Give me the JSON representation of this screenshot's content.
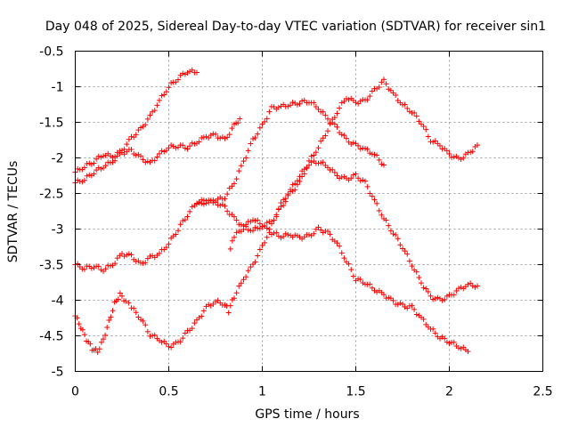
{
  "chart_data": {
    "type": "scatter",
    "title": "Day 048 of 2025, Sidereal Day-to-day VTEC variation (SDTVAR) for receiver sin1",
    "xlabel": "GPS time / hours",
    "ylabel": "SDTVAR / TECUs",
    "xlim": [
      0,
      2.5
    ],
    "ylim": [
      -5,
      -0.5
    ],
    "xticks": [
      "0",
      "0.5",
      "1",
      "1.5",
      "2",
      "2.5"
    ],
    "yticks": [
      "-0.5",
      "-1",
      "-1.5",
      "-2",
      "-2.5",
      "-3",
      "-3.5",
      "-4",
      "-4.5",
      "-5"
    ],
    "grid": true,
    "marker": "+",
    "color": "#ff0000",
    "series": [
      {
        "points": [
          [
            0,
            -2.2
          ],
          [
            0.05,
            -2.12
          ],
          [
            0.1,
            -2.05
          ],
          [
            0.15,
            -1.95
          ],
          [
            0.2,
            -1.98
          ],
          [
            0.25,
            -1.9
          ],
          [
            0.3,
            -1.72
          ],
          [
            0.35,
            -1.6
          ],
          [
            0.4,
            -1.42
          ],
          [
            0.45,
            -1.2
          ],
          [
            0.5,
            -1.0
          ],
          [
            0.55,
            -0.88
          ],
          [
            0.6,
            -0.78
          ],
          [
            0.65,
            -0.8
          ]
        ]
      },
      {
        "points": [
          [
            0,
            -2.35
          ],
          [
            0.05,
            -2.3
          ],
          [
            0.1,
            -2.2
          ],
          [
            0.15,
            -2.12
          ],
          [
            0.2,
            -2.05
          ],
          [
            0.25,
            -1.93
          ],
          [
            0.3,
            -1.9
          ],
          [
            0.35,
            -2.0
          ],
          [
            0.4,
            -2.08
          ],
          [
            0.45,
            -1.95
          ],
          [
            0.5,
            -1.85
          ],
          [
            0.55,
            -1.83
          ],
          [
            0.6,
            -1.85
          ],
          [
            0.65,
            -1.78
          ],
          [
            0.7,
            -1.7
          ],
          [
            0.75,
            -1.68
          ],
          [
            0.8,
            -1.75
          ],
          [
            0.85,
            -1.55
          ],
          [
            0.88,
            -1.45
          ]
        ]
      },
      {
        "points": [
          [
            0,
            -3.5
          ],
          [
            0.05,
            -3.55
          ],
          [
            0.1,
            -3.52
          ],
          [
            0.15,
            -3.57
          ],
          [
            0.2,
            -3.5
          ],
          [
            0.25,
            -3.35
          ],
          [
            0.3,
            -3.38
          ],
          [
            0.35,
            -3.5
          ],
          [
            0.4,
            -3.4
          ],
          [
            0.45,
            -3.35
          ],
          [
            0.5,
            -3.2
          ],
          [
            0.55,
            -3.0
          ],
          [
            0.6,
            -2.8
          ],
          [
            0.65,
            -2.62
          ],
          [
            0.7,
            -2.6
          ],
          [
            0.75,
            -2.62
          ],
          [
            0.8,
            -2.7
          ],
          [
            0.85,
            -2.85
          ],
          [
            0.9,
            -2.97
          ],
          [
            0.95,
            -3.02
          ],
          [
            1.0,
            -2.95
          ],
          [
            1.05,
            -3.05
          ],
          [
            1.1,
            -3.1
          ],
          [
            1.15,
            -3.08
          ],
          [
            1.2,
            -3.12
          ],
          [
            1.25,
            -3.1
          ],
          [
            1.3,
            -3.0
          ],
          [
            1.35,
            -3.05
          ],
          [
            1.4,
            -3.2
          ],
          [
            1.45,
            -3.45
          ],
          [
            1.5,
            -3.7
          ],
          [
            1.55,
            -3.75
          ],
          [
            1.6,
            -3.85
          ],
          [
            1.65,
            -3.92
          ],
          [
            1.7,
            -4.02
          ],
          [
            1.75,
            -4.08
          ],
          [
            1.8,
            -4.1
          ],
          [
            1.85,
            -4.25
          ],
          [
            1.9,
            -4.4
          ],
          [
            1.95,
            -4.52
          ],
          [
            2.0,
            -4.58
          ],
          [
            2.05,
            -4.65
          ],
          [
            2.1,
            -4.72
          ]
        ]
      },
      {
        "points": [
          [
            0,
            -4.22
          ],
          [
            0.03,
            -4.38
          ],
          [
            0.06,
            -4.55
          ],
          [
            0.09,
            -4.68
          ],
          [
            0.12,
            -4.72
          ],
          [
            0.15,
            -4.55
          ],
          [
            0.18,
            -4.3
          ],
          [
            0.21,
            -4.05
          ],
          [
            0.24,
            -3.92
          ],
          [
            0.27,
            -4.02
          ],
          [
            0.3,
            -4.1
          ],
          [
            0.35,
            -4.25
          ],
          [
            0.4,
            -4.48
          ],
          [
            0.45,
            -4.55
          ],
          [
            0.5,
            -4.65
          ],
          [
            0.55,
            -4.6
          ],
          [
            0.6,
            -4.45
          ],
          [
            0.65,
            -4.3
          ],
          [
            0.7,
            -4.1
          ],
          [
            0.75,
            -4.02
          ],
          [
            0.8,
            -4.05
          ],
          [
            0.82,
            -4.15
          ],
          [
            0.85,
            -3.95
          ],
          [
            0.9,
            -3.7
          ],
          [
            0.95,
            -3.5
          ],
          [
            1.0,
            -3.25
          ],
          [
            1.05,
            -2.95
          ],
          [
            1.1,
            -2.65
          ],
          [
            1.15,
            -2.45
          ],
          [
            1.2,
            -2.25
          ],
          [
            1.25,
            -2.08
          ],
          [
            1.3,
            -2.05
          ],
          [
            1.35,
            -2.12
          ],
          [
            1.4,
            -2.25
          ],
          [
            1.45,
            -2.3
          ],
          [
            1.5,
            -2.25
          ],
          [
            1.55,
            -2.35
          ],
          [
            1.6,
            -2.6
          ],
          [
            1.65,
            -2.85
          ],
          [
            1.7,
            -3.05
          ],
          [
            1.75,
            -3.25
          ],
          [
            1.8,
            -3.5
          ],
          [
            1.85,
            -3.75
          ],
          [
            1.9,
            -3.95
          ],
          [
            1.95,
            -4.0
          ],
          [
            2.0,
            -3.95
          ],
          [
            2.05,
            -3.85
          ],
          [
            2.1,
            -3.78
          ],
          [
            2.15,
            -3.8
          ]
        ]
      },
      {
        "points": [
          [
            0.83,
            -3.28
          ],
          [
            0.85,
            -3.1
          ],
          [
            0.9,
            -2.98
          ],
          [
            0.95,
            -2.85
          ],
          [
            1.0,
            -2.95
          ],
          [
            1.05,
            -2.9
          ],
          [
            1.1,
            -2.7
          ],
          [
            1.15,
            -2.5
          ],
          [
            1.2,
            -2.35
          ],
          [
            1.25,
            -2.05
          ],
          [
            1.3,
            -1.85
          ],
          [
            1.35,
            -1.6
          ],
          [
            1.4,
            -1.35
          ],
          [
            1.45,
            -1.15
          ],
          [
            1.5,
            -1.22
          ],
          [
            1.55,
            -1.2
          ],
          [
            1.6,
            -1.05
          ],
          [
            1.65,
            -0.92
          ],
          [
            1.7,
            -1.1
          ],
          [
            1.75,
            -1.25
          ],
          [
            1.8,
            -1.35
          ],
          [
            1.85,
            -1.5
          ],
          [
            1.9,
            -1.75
          ],
          [
            1.95,
            -1.82
          ],
          [
            2.0,
            -1.95
          ],
          [
            2.05,
            -2.02
          ],
          [
            2.1,
            -1.95
          ],
          [
            2.15,
            -1.82
          ]
        ]
      },
      {
        "points": [
          [
            0.65,
            -2.65
          ],
          [
            0.7,
            -2.62
          ],
          [
            0.75,
            -2.6
          ],
          [
            0.8,
            -2.55
          ],
          [
            0.85,
            -2.35
          ],
          [
            0.9,
            -2.05
          ],
          [
            0.95,
            -1.75
          ],
          [
            1.0,
            -1.55
          ],
          [
            1.05,
            -1.3
          ],
          [
            1.1,
            -1.28
          ],
          [
            1.15,
            -1.25
          ],
          [
            1.2,
            -1.22
          ],
          [
            1.25,
            -1.2
          ],
          [
            1.3,
            -1.3
          ],
          [
            1.35,
            -1.45
          ],
          [
            1.4,
            -1.58
          ],
          [
            1.45,
            -1.75
          ],
          [
            1.5,
            -1.82
          ],
          [
            1.55,
            -1.88
          ],
          [
            1.6,
            -1.95
          ],
          [
            1.65,
            -2.1
          ]
        ]
      }
    ]
  }
}
